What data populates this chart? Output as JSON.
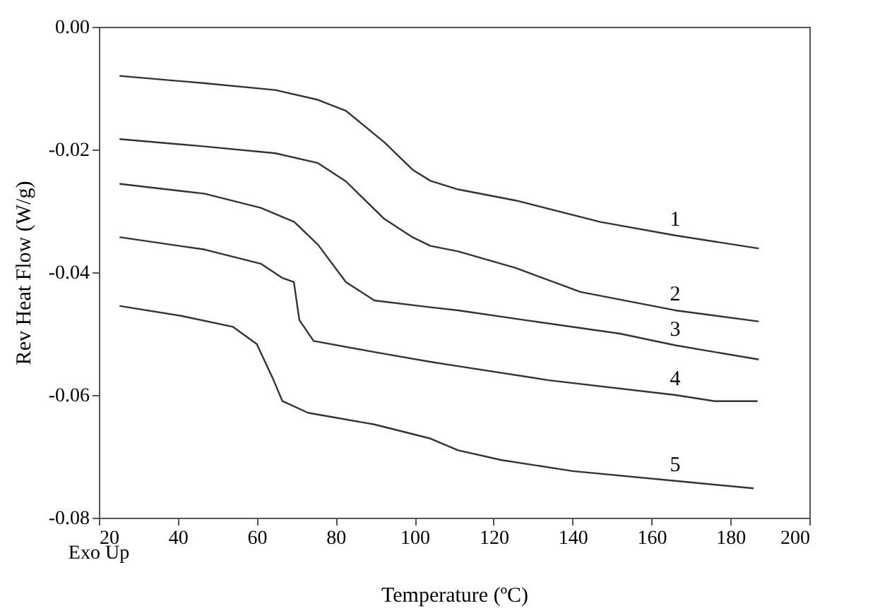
{
  "chart_data": {
    "type": "line",
    "xlabel": "Temperature (ºC)",
    "ylabel": "Rev Heat Flow (W/g)",
    "xlim": [
      20,
      200
    ],
    "xticks": [
      20,
      40,
      60,
      80,
      100,
      120,
      140,
      160,
      180,
      200
    ],
    "ylim": [
      -0.08,
      0
    ],
    "yticks": [
      {
        "value": -0.08,
        "label": "-0.08"
      },
      {
        "value": -0.06,
        "label": "-0.06"
      },
      {
        "value": -0.04,
        "label": "-0.04"
      },
      {
        "value": -0.02,
        "label": "-0.02"
      },
      {
        "value": 0,
        "label": "0.00"
      }
    ],
    "grid": false,
    "line_style": "solid",
    "marker": "none",
    "series": [
      {
        "name": "1",
        "color": "#333333",
        "x": [
          25.4,
          46.8,
          64.7,
          75.5,
          82.6,
          92.3,
          99.5,
          104,
          111,
          125.6,
          147,
          166,
          187
        ],
        "values": [
          -0.008,
          -0.0092,
          -0.0103,
          -0.0119,
          -0.0137,
          -0.0188,
          -0.0233,
          -0.0251,
          -0.0265,
          -0.0283,
          -0.0318,
          -0.034,
          -0.0361
        ]
      },
      {
        "name": "2",
        "color": "#333333",
        "x": [
          25.4,
          46.8,
          64.7,
          75.5,
          82.6,
          92.3,
          99.5,
          104,
          111,
          125.6,
          142,
          166,
          187
        ],
        "values": [
          -0.0183,
          -0.0195,
          -0.0206,
          -0.0222,
          -0.0252,
          -0.0313,
          -0.0343,
          -0.0357,
          -0.0366,
          -0.0393,
          -0.0432,
          -0.0462,
          -0.048
        ]
      },
      {
        "name": "3",
        "color": "#333333",
        "x": [
          25.4,
          46.8,
          61,
          69.5,
          75.5,
          82.6,
          89.8,
          104,
          111,
          128,
          152,
          166,
          187
        ],
        "values": [
          -0.0256,
          -0.0272,
          -0.0295,
          -0.0318,
          -0.0355,
          -0.0416,
          -0.0446,
          -0.0457,
          -0.0462,
          -0.0478,
          -0.05,
          -0.0519,
          -0.0542
        ]
      },
      {
        "name": "4",
        "color": "#333333",
        "x": [
          25.4,
          46.8,
          61,
          66.4,
          69.4,
          70.8,
          74.4,
          89.8,
          104,
          111,
          134,
          166,
          176,
          186.7
        ],
        "values": [
          -0.0343,
          -0.0363,
          -0.0386,
          -0.0409,
          -0.0416,
          -0.0478,
          -0.0512,
          -0.053,
          -0.0546,
          -0.0553,
          -0.0576,
          -0.06,
          -0.061,
          -0.061
        ]
      },
      {
        "name": "5",
        "color": "#333333",
        "x": [
          25.4,
          40.8,
          54,
          60,
          64,
          66.5,
          73,
          89.8,
          104,
          111,
          122,
          140,
          166,
          185.7
        ],
        "values": [
          -0.0455,
          -0.0471,
          -0.0489,
          -0.0517,
          -0.0572,
          -0.061,
          -0.0629,
          -0.0648,
          -0.0671,
          -0.069,
          -0.0706,
          -0.0724,
          -0.074,
          -0.0752
        ]
      }
    ],
    "annotations": [
      "Exo Up"
    ]
  }
}
